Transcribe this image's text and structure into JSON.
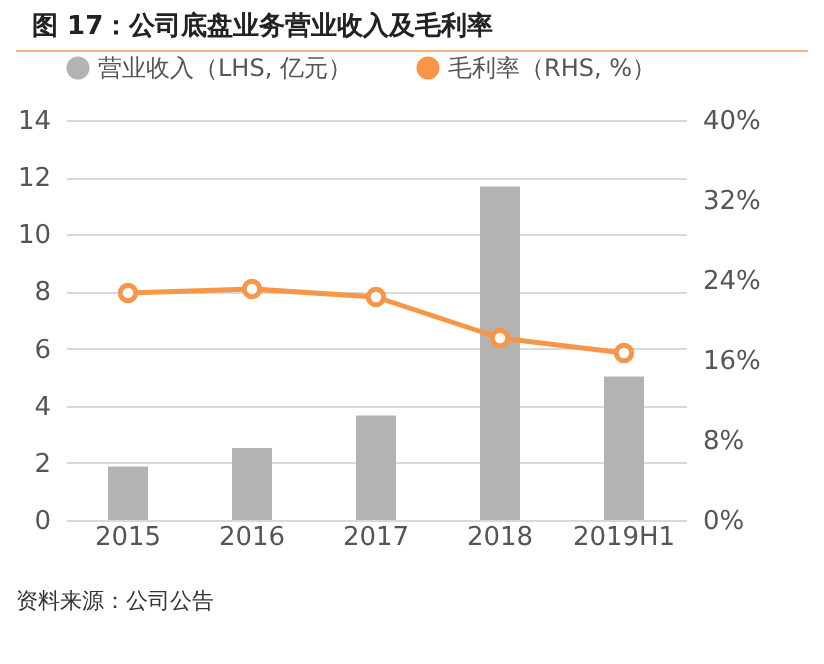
{
  "chart_data": {
    "type": "bar",
    "title": "图 17：公司底盘业务营业收入及毛利率",
    "categories": [
      "2015",
      "2016",
      "2017",
      "2018",
      "2019H1"
    ],
    "series": [
      {
        "name": "营业收入（LHS, 亿元）",
        "color": "#b3b3b3",
        "values": [
          1.87,
          2.52,
          3.66,
          11.67,
          5.02
        ]
      },
      {
        "name": "毛利率（RHS, %）",
        "type": "line",
        "axis": "y2",
        "color": "#f79646",
        "values": [
          22.7,
          23.1,
          22.3,
          18.2,
          16.7
        ]
      }
    ],
    "ylim": [
      0,
      14
    ],
    "yticks": [
      0,
      2,
      4,
      6,
      8,
      10,
      12,
      14
    ],
    "y2lim": [
      0,
      40
    ],
    "y2ticks": [
      {
        "value": 0,
        "label": "0%"
      },
      {
        "value": 8,
        "label": "8%"
      },
      {
        "value": 16,
        "label": "16%"
      },
      {
        "value": 24,
        "label": "24%"
      },
      {
        "value": 32,
        "label": "32%"
      },
      {
        "value": 40,
        "label": "40%"
      }
    ],
    "grid": "y",
    "legend": "top",
    "marker": "circle",
    "line_style": "solid",
    "annotations": [
      "资料来源：公司公告"
    ]
  }
}
